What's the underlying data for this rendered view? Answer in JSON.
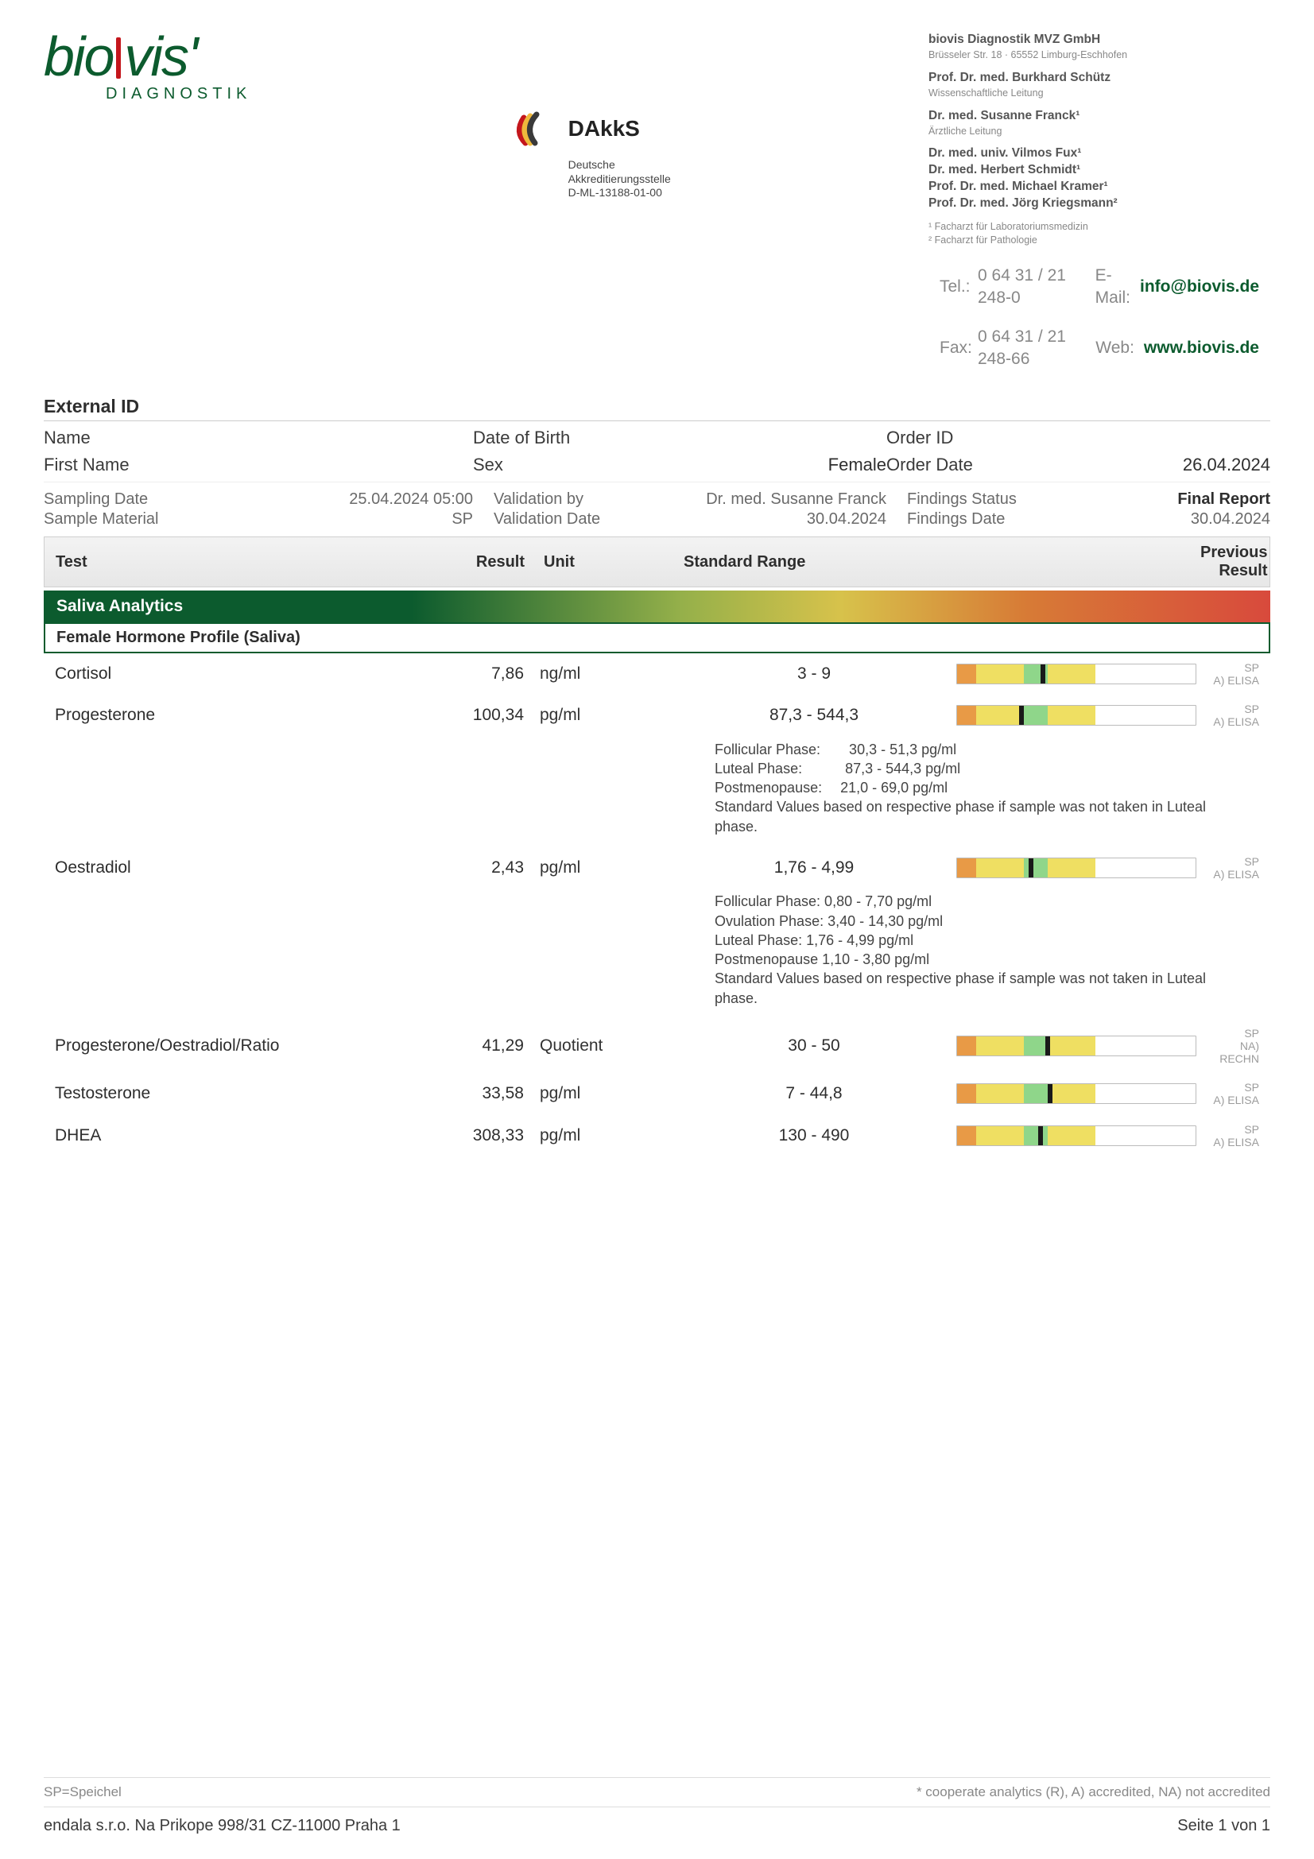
{
  "logo": {
    "text1": "bio",
    "text2": "vis'",
    "sub": "DIAGNOSTIK"
  },
  "dakks": {
    "name": "DAkkS",
    "line1": "Deutsche",
    "line2": "Akkreditierungsstelle",
    "line3": "D-ML-13188-01-00"
  },
  "company": {
    "name": "biovis Diagnostik MVZ GmbH",
    "addr": "Brüsseler Str. 18 · 65552 Limburg-Eschhofen",
    "p1_name": "Prof. Dr. med. Burkhard Schütz",
    "p1_role": "Wissenschaftliche Leitung",
    "p2_name": "Dr. med. Susanne Franck¹",
    "p2_role": "Ärztliche Leitung",
    "p3": "Dr. med. univ. Vilmos Fux¹",
    "p4": "Dr. med. Herbert Schmidt¹",
    "p5": "Prof. Dr. med. Michael Kramer¹",
    "p6": "Prof. Dr. med. Jörg Kriegsmann²",
    "fn1": "¹ Facharzt für Laboratoriumsmedizin",
    "fn2": "² Facharzt für Pathologie",
    "tel_l": "Tel.:",
    "tel": "0 64 31 / 21 248-0",
    "fax_l": "Fax:",
    "fax": "0 64 31 / 21 248-66",
    "email_l": "E-Mail:",
    "email": "info@biovis.de",
    "web_l": "Web:",
    "web": "www.biovis.de"
  },
  "meta": {
    "external_id_l": "External ID",
    "name_l": "Name",
    "dob_l": "Date of Birth",
    "order_id_l": "Order ID",
    "first_l": "First Name",
    "sex_l": "Sex",
    "sex_v": "Female",
    "order_date_l": "Order Date",
    "order_date_v": "26.04.2024",
    "sampling_l": "Sampling Date",
    "sampling_v": "25.04.2024 05:00",
    "material_l": "Sample Material",
    "material_v": "SP",
    "valby_l": "Validation by",
    "valby_v": "Dr. med. Susanne Franck",
    "valdate_l": "Validation Date",
    "valdate_v": "30.04.2024",
    "fstat_l": "Findings Status",
    "fstat_v": "Final Report",
    "fdate_l": "Findings Date",
    "fdate_v": "30.04.2024"
  },
  "thead": {
    "test": "Test",
    "result": "Result",
    "unit": "Unit",
    "std": "Standard Range",
    "prev": "Previous Result"
  },
  "section": "Saliva Analytics",
  "subsection": "Female Hormone Profile (Saliva)",
  "bar_style": {
    "red_l": "#e89a46",
    "yel": "#efdf62",
    "grn": "#8fd68a",
    "stops_pct": {
      "red_l_end": 8,
      "yel_l_end": 28,
      "grn_end": 38,
      "yel_r_end": 58
    }
  },
  "rows": [
    {
      "test": "Cortisol",
      "result": "7,86",
      "unit": "ng/ml",
      "range": "3 - 9",
      "mark_pct": 36,
      "m1": "SP",
      "m2": "A) ELISA"
    },
    {
      "test": "Progesterone",
      "result": "100,34",
      "unit": "pg/ml",
      "range": "87,3 - 544,3",
      "mark_pct": 27,
      "m1": "SP",
      "m2": "A) ELISA",
      "note": "Follicular Phase:  30,3 - 51,3 pg/ml\nLuteal Phase:   87,3 - 544,3 pg/ml\nPostmenopause:  21,0 - 69,0 pg/ml\nStandard Values based on respective phase if sample was not taken in Luteal phase."
    },
    {
      "test": "Oestradiol",
      "result": "2,43",
      "unit": "pg/ml",
      "range": "1,76 - 4,99",
      "mark_pct": 31,
      "m1": "SP",
      "m2": "A) ELISA",
      "note": "Follicular Phase: 0,80 - 7,70 pg/ml\nOvulation Phase: 3,40 - 14,30  pg/ml\nLuteal Phase: 1,76 - 4,99  pg/ml\nPostmenopause 1,10 - 3,80 pg/ml\nStandard Values based on respective phase if sample was not taken in Luteal phase."
    },
    {
      "test": "Progesterone/Oestradiol/Ratio",
      "result": "41,29",
      "unit": "Quotient",
      "range": "30 - 50",
      "mark_pct": 38,
      "m1": "SP",
      "m2": "NA) RECHN"
    },
    {
      "test": "Testosterone",
      "result": "33,58",
      "unit": "pg/ml",
      "range": "7 - 44,8",
      "mark_pct": 39,
      "m1": "SP",
      "m2": "A) ELISA"
    },
    {
      "test": "DHEA",
      "result": "308,33",
      "unit": "pg/ml",
      "range": "130 - 490",
      "mark_pct": 35,
      "m1": "SP",
      "m2": "A) ELISA"
    }
  ],
  "footer": {
    "left": "SP=Speichel",
    "right": "* cooperate analytics (R), A) accredited, NA) not accredited",
    "addr": "endala s.r.o. Na Prikope 998/31  CZ-11000 Praha 1",
    "page": "Seite 1 von 1"
  }
}
